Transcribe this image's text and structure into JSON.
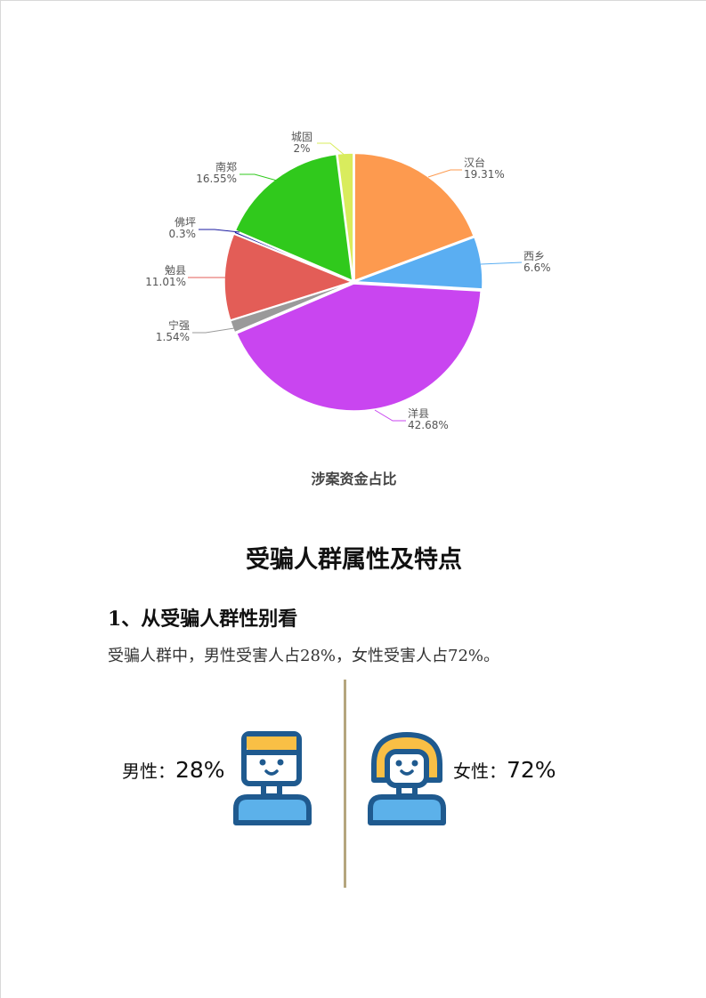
{
  "chart_data": {
    "type": "pie",
    "title": "涉案资金占比",
    "slices": [
      {
        "label": "汉台",
        "value": 19.31,
        "display": "19.31%",
        "color": "#fd9a4f"
      },
      {
        "label": "西乡",
        "value": 6.6,
        "display": "6.6%",
        "color": "#5aaef2"
      },
      {
        "label": "洋县",
        "value": 42.68,
        "display": "42.68%",
        "color": "#c945f0"
      },
      {
        "label": "宁强",
        "value": 1.54,
        "display": "1.54%",
        "color": "#9a9a9a"
      },
      {
        "label": "勉县",
        "value": 11.01,
        "display": "11.01%",
        "color": "#e35d57"
      },
      {
        "label": "佛坪",
        "value": 0.3,
        "display": "0.3%",
        "color": "#1a1aa0"
      },
      {
        "label": "南郑",
        "value": 16.55,
        "display": "16.55%",
        "color": "#30c91c"
      },
      {
        "label": "城固",
        "value": 2,
        "display": "2%",
        "color": "#d9ec5d"
      }
    ],
    "start": "top",
    "direction": "clockwise",
    "legend": "none"
  },
  "section": {
    "heading": "受骗人群属性及特点",
    "subheading": "1、从受骗人群性别看",
    "paragraph": "受骗人群中，男性受害人占28%，女性受害人占72%。"
  },
  "gender": {
    "male_label": "男性：",
    "male_value": "28%",
    "female_label": "女性：",
    "female_value": "72%",
    "icon_colors": {
      "outline": "#1f5a8f",
      "hair": "#f9bf45",
      "shirt": "#5cb1ea"
    }
  }
}
